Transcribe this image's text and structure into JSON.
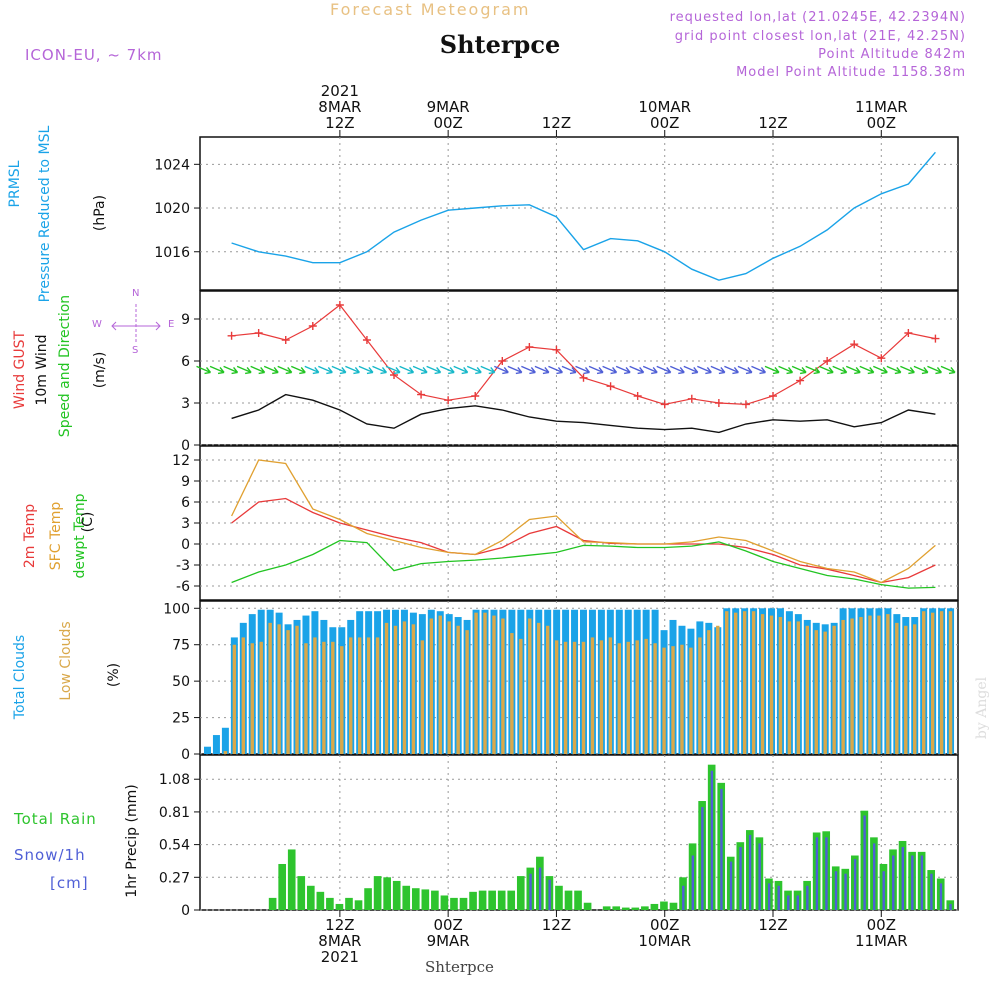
{
  "header": {
    "subtitle": "Forecast Meteogram",
    "title": "Shterpce",
    "model": "ICON-EU, ~ 7km",
    "requested": "requested lon,lat (21.0245E, 42.2394N)",
    "gridpoint": "grid point closest lon,lat (21E, 42.25N)",
    "point_alt": "Point Altitude 842m",
    "model_alt": "Model Point Altitude 1158.38m",
    "footer_station": "Shterpce",
    "credit": "by Angel"
  },
  "time_axis": {
    "top_labels": [
      {
        "lines": [
          "2021",
          "8MAR",
          "12Z"
        ],
        "t": 12
      },
      {
        "lines": [
          "9MAR",
          "00Z"
        ],
        "t": 24
      },
      {
        "lines": [
          "12Z"
        ],
        "t": 36
      },
      {
        "lines": [
          "10MAR",
          "00Z"
        ],
        "t": 48
      },
      {
        "lines": [
          "12Z"
        ],
        "t": 60
      },
      {
        "lines": [
          "11MAR",
          "00Z"
        ],
        "t": 72
      }
    ],
    "bottom_labels": [
      {
        "lines": [
          "12Z",
          "8MAR",
          "2021"
        ],
        "t": 12
      },
      {
        "lines": [
          "00Z",
          "9MAR"
        ],
        "t": 24
      },
      {
        "lines": [
          "12Z"
        ],
        "t": 36
      },
      {
        "lines": [
          "00Z",
          "10MAR"
        ],
        "t": 48
      },
      {
        "lines": [
          "12Z"
        ],
        "t": 60
      },
      {
        "lines": [
          "00Z",
          "11MAR"
        ],
        "t": 72
      }
    ]
  },
  "panel_labels": {
    "pressure": {
      "l1": "PRMSL",
      "l2": "Pressure Reduced to MSL",
      "unit": "(hPa)"
    },
    "wind": {
      "l1": "Wind GUST",
      "l2": "10m Wind",
      "l3": "Speed and Direction",
      "unit": "(m/s)",
      "compass": {
        "n": "N",
        "s": "S",
        "w": "W",
        "e": "E"
      }
    },
    "temp": {
      "l1": "2m Temp",
      "l2": "SFC Temp",
      "l3": "dewpt Temp",
      "unit": "(C)"
    },
    "clouds": {
      "l1": "Total Clouds",
      "l2": "Low Clouds",
      "unit": "(%)"
    },
    "precip": {
      "l1": "Total  Rain",
      "l2": "Snow/1h",
      "l3": "[cm]",
      "unit": "1hr Precip (mm)"
    }
  },
  "colors": {
    "pressure": "#1aa3e8",
    "gust": "#e83a3a",
    "wind": "#111111",
    "temp2m": "#e83a3a",
    "sfc": "#e0a030",
    "dewpt": "#22c422",
    "total_clouds": "#1aa3e8",
    "low_clouds": "#d9a84a",
    "rain": "#2ec42e",
    "snow": "#4f5fd6",
    "purple": "#b565d8"
  },
  "chart_data": [
    {
      "type": "line",
      "name": "pressure",
      "ylim": [
        1012.5,
        1026.5
      ],
      "ticks": [
        1016,
        1020,
        1024
      ],
      "x": [
        0,
        3,
        6,
        9,
        12,
        15,
        18,
        21,
        24,
        27,
        30,
        33,
        36,
        39,
        42,
        45,
        48,
        51,
        54,
        57,
        60,
        63,
        66,
        69,
        72,
        75,
        78
      ],
      "series": [
        {
          "name": "PRMSL",
          "values": [
            1016.8,
            1016.0,
            1015.6,
            1015.0,
            1015.0,
            1016.0,
            1017.8,
            1018.9,
            1019.8,
            1020.0,
            1020.2,
            1020.3,
            1019.2,
            1016.2,
            1017.2,
            1017.0,
            1016.0,
            1014.4,
            1013.4,
            1014.0,
            1015.4,
            1016.5,
            1018.0,
            1020.0,
            1021.3,
            1022.2,
            1025.1
          ]
        }
      ]
    },
    {
      "type": "line",
      "name": "wind",
      "ylim": [
        0,
        11
      ],
      "ticks": [
        0,
        3,
        6,
        9
      ],
      "x": [
        0,
        3,
        6,
        9,
        12,
        15,
        18,
        21,
        24,
        27,
        30,
        33,
        36,
        39,
        42,
        45,
        48,
        51,
        54,
        57,
        60,
        63,
        66,
        69,
        72,
        75,
        78
      ],
      "series": [
        {
          "name": "Wind GUST",
          "values": [
            7.8,
            8.0,
            7.5,
            8.5,
            10.0,
            7.5,
            5.0,
            3.6,
            3.2,
            3.5,
            6.0,
            7.0,
            6.8,
            4.8,
            4.2,
            3.5,
            2.9,
            3.3,
            3.0,
            2.9,
            3.5,
            4.6,
            6.0,
            7.2,
            6.2,
            8.0,
            7.6
          ]
        },
        {
          "name": "10m Wind",
          "values": [
            1.9,
            2.5,
            3.6,
            3.2,
            2.5,
            1.5,
            1.2,
            2.2,
            2.6,
            2.8,
            2.5,
            2.0,
            1.7,
            1.6,
            1.4,
            1.2,
            1.1,
            1.2,
            0.9,
            1.5,
            1.8,
            1.7,
            1.8,
            1.3,
            1.6,
            2.5,
            2.2
          ]
        }
      ]
    },
    {
      "type": "line",
      "name": "temperature",
      "ylim": [
        -8,
        14
      ],
      "ticks": [
        -6,
        -3,
        0,
        3,
        6,
        9,
        12
      ],
      "x": [
        0,
        3,
        6,
        9,
        12,
        15,
        18,
        21,
        24,
        27,
        30,
        33,
        36,
        39,
        42,
        45,
        48,
        51,
        54,
        57,
        60,
        63,
        66,
        69,
        72,
        75,
        78
      ],
      "series": [
        {
          "name": "2m Temp",
          "values": [
            3.0,
            6.0,
            6.5,
            4.5,
            3.0,
            2.0,
            1.0,
            0.2,
            -1.2,
            -1.5,
            -0.5,
            1.5,
            2.5,
            0.5,
            0.1,
            0.0,
            0.0,
            0.0,
            0.0,
            -0.5,
            -1.5,
            -3.0,
            -3.6,
            -4.5,
            -5.5,
            -4.8,
            -3.0
          ]
        },
        {
          "name": "SFC Temp",
          "values": [
            4.0,
            12.0,
            11.5,
            5.0,
            3.5,
            1.5,
            0.5,
            -0.5,
            -1.2,
            -1.5,
            0.5,
            3.5,
            4.0,
            0.3,
            0.2,
            0.0,
            0.0,
            0.3,
            1.0,
            0.5,
            -1.0,
            -2.5,
            -3.5,
            -4.0,
            -5.5,
            -3.5,
            -0.2
          ]
        },
        {
          "name": "dewpt Temp",
          "values": [
            -5.5,
            -4.0,
            -3.0,
            -1.5,
            0.5,
            0.2,
            -3.8,
            -2.8,
            -2.5,
            -2.3,
            -2.0,
            -1.6,
            -1.2,
            -0.2,
            -0.3,
            -0.5,
            -0.5,
            -0.3,
            0.3,
            -1.0,
            -2.5,
            -3.5,
            -4.5,
            -5.0,
            -5.8,
            -6.3,
            -6.2
          ]
        }
      ]
    },
    {
      "type": "bar",
      "name": "clouds",
      "ylim": [
        0,
        105
      ],
      "ticks": [
        0,
        25,
        50,
        75,
        100
      ],
      "series": [
        {
          "name": "Total Clouds",
          "values": [
            5,
            13,
            18,
            80,
            90,
            96,
            99,
            99,
            97,
            89,
            92,
            95,
            98,
            92,
            87,
            87,
            92,
            98,
            98,
            98,
            99,
            99,
            99,
            97,
            96,
            99,
            98,
            96,
            94,
            92,
            99,
            99,
            99,
            99,
            99,
            99,
            99,
            99,
            99,
            99,
            99,
            99,
            99,
            99,
            99,
            99,
            99,
            99,
            99,
            99,
            99,
            85,
            92,
            88,
            86,
            91,
            90,
            87,
            100,
            100,
            100,
            100,
            100,
            100,
            100,
            98,
            96,
            92,
            90,
            89,
            90,
            100,
            100,
            100,
            100,
            100,
            100,
            96,
            94,
            94,
            100,
            100,
            100,
            100
          ]
        },
        {
          "name": "Low Clouds",
          "values": [
            0,
            0,
            2,
            75,
            80,
            76,
            77,
            90,
            89,
            85,
            88,
            76,
            80,
            77,
            77,
            74,
            80,
            80,
            80,
            80,
            90,
            88,
            91,
            89,
            78,
            93,
            95,
            91,
            88,
            85,
            97,
            97,
            95,
            93,
            83,
            79,
            93,
            90,
            88,
            78,
            77,
            77,
            77,
            80,
            78,
            80,
            76,
            77,
            78,
            79,
            76,
            73,
            74,
            75,
            73,
            80,
            85,
            88,
            98,
            97,
            98,
            98,
            96,
            95,
            94,
            91,
            91,
            88,
            85,
            84,
            88,
            92,
            93,
            94,
            95,
            95,
            96,
            90,
            88,
            89,
            98,
            97,
            98,
            98
          ]
        }
      ]
    },
    {
      "type": "bar",
      "name": "precipitation",
      "ylim": [
        0,
        1.28
      ],
      "ticks": [
        0,
        0.27,
        0.54,
        0.81,
        1.08
      ],
      "series": [
        {
          "name": "Total Rain",
          "values": [
            0,
            0,
            0,
            0,
            0,
            0,
            0,
            0.1,
            0.38,
            0.5,
            0.28,
            0.2,
            0.15,
            0.1,
            0.05,
            0.1,
            0.08,
            0.18,
            0.28,
            0.27,
            0.24,
            0.2,
            0.18,
            0.17,
            0.16,
            0.12,
            0.1,
            0.1,
            0.15,
            0.16,
            0.16,
            0.16,
            0.16,
            0.28,
            0.35,
            0.44,
            0.28,
            0.2,
            0.16,
            0.16,
            0.06,
            0,
            0.03,
            0.03,
            0.02,
            0.02,
            0.03,
            0.05,
            0.07,
            0.06,
            0.27,
            0.55,
            0.9,
            1.2,
            1.05,
            0.44,
            0.56,
            0.66,
            0.6,
            0.26,
            0.24,
            0.16,
            0.16,
            0.24,
            0.64,
            0.65,
            0.36,
            0.34,
            0.45,
            0.82,
            0.6,
            0.38,
            0.5,
            0.57,
            0.48,
            0.48,
            0.33,
            0.26,
            0.08
          ]
        },
        {
          "name": "Snow/1h",
          "values": [
            0,
            0,
            0,
            0,
            0,
            0,
            0,
            0,
            0,
            0,
            0,
            0,
            0,
            0,
            0,
            0,
            0,
            0,
            0,
            0,
            0,
            0,
            0,
            0,
            0,
            0,
            0,
            0,
            0,
            0,
            0,
            0,
            0,
            0,
            0.3,
            0.35,
            0.25,
            0,
            0,
            0,
            0,
            0,
            0,
            0,
            0,
            0,
            0,
            0,
            0,
            0,
            0.2,
            0.45,
            0.85,
            1.15,
            1.0,
            0.4,
            0.52,
            0.62,
            0.55,
            0.22,
            0.2,
            0.12,
            0.12,
            0.2,
            0.6,
            0.6,
            0.32,
            0.3,
            0.42,
            0.78,
            0.55,
            0.32,
            0.45,
            0.52,
            0.45,
            0.45,
            0.3,
            0.22,
            0.05
          ]
        }
      ]
    }
  ]
}
